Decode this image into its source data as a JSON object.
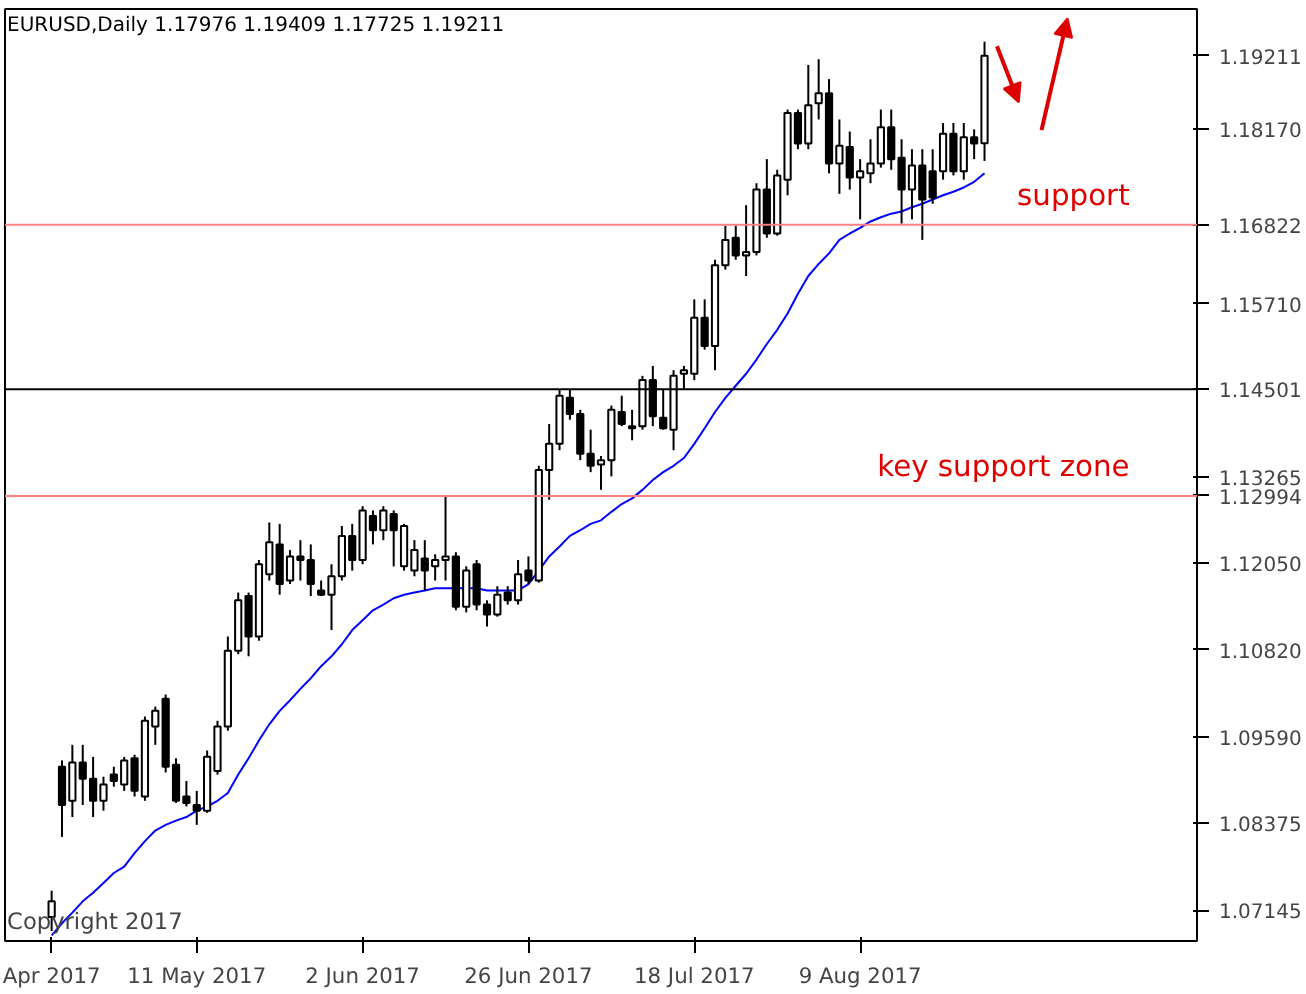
{
  "chart_data": {
    "type": "candlestick",
    "title": "EURUSD,Daily  1.17976 1.19409 1.17725 1.19211",
    "annotations": [
      "Copyright 2017"
    ],
    "categories": [
      "Apr 2017",
      null,
      null,
      null,
      null,
      null,
      null,
      null,
      null,
      null,
      null,
      null,
      null,
      null,
      "11 May 2017",
      null,
      null,
      null,
      null,
      null,
      null,
      null,
      null,
      null,
      null,
      null,
      null,
      null,
      null,
      null,
      "2 Jun 2017",
      null,
      null,
      null,
      null,
      null,
      null,
      null,
      null,
      null,
      null,
      null,
      null,
      null,
      null,
      null,
      "26 Jun 2017",
      null,
      null,
      null,
      null,
      null,
      null,
      null,
      null,
      null,
      null,
      null,
      null,
      null,
      null,
      null,
      "18 Jul 2017",
      null,
      null,
      null,
      null,
      null,
      null,
      null,
      null,
      null,
      null,
      null,
      null,
      null,
      null,
      null,
      "9 Aug 2017",
      null,
      null,
      null,
      null,
      null,
      null,
      null,
      null,
      null,
      null,
      null,
      null
    ],
    "ohlc": [
      [
        1.0705,
        1.0742,
        1.0685,
        1.0727
      ],
      [
        1.0917,
        1.0926,
        1.0818,
        1.0863
      ],
      [
        1.0869,
        1.0948,
        1.0846,
        1.0923
      ],
      [
        1.0923,
        1.0948,
        1.0863,
        1.09
      ],
      [
        1.09,
        1.0931,
        1.0846,
        1.0869
      ],
      [
        1.0869,
        1.0903,
        1.0855,
        1.0892
      ],
      [
        1.0906,
        1.0917,
        1.0889,
        1.0897
      ],
      [
        1.0892,
        1.0931,
        1.0883,
        1.0926
      ],
      [
        1.0929,
        1.0934,
        1.0875,
        1.0883
      ],
      [
        1.0875,
        1.0988,
        1.0869,
        1.0982
      ],
      [
        1.0974,
        1.1002,
        1.0948,
        1.0996
      ],
      [
        1.1013,
        1.1019,
        1.0909,
        1.0917
      ],
      [
        1.092,
        1.0929,
        1.0866,
        1.0869
      ],
      [
        1.0875,
        1.0897,
        1.0861,
        1.0866
      ],
      [
        1.0863,
        1.0883,
        1.0835,
        1.0855
      ],
      [
        1.0855,
        1.094,
        1.0852,
        1.0931
      ],
      [
        1.0911,
        1.0982,
        1.0906,
        1.0974
      ],
      [
        1.0974,
        1.1101,
        1.0968,
        1.1081
      ],
      [
        1.1081,
        1.1163,
        1.1076,
        1.1152
      ],
      [
        1.1158,
        1.1163,
        1.1073,
        1.1101
      ],
      [
        1.1101,
        1.1209,
        1.1095,
        1.1203
      ],
      [
        1.1189,
        1.1262,
        1.118,
        1.1234
      ],
      [
        1.1231,
        1.126,
        1.116,
        1.1175
      ],
      [
        1.118,
        1.1223,
        1.1175,
        1.1214
      ],
      [
        1.1214,
        1.1237,
        1.118,
        1.1209
      ],
      [
        1.1209,
        1.1231,
        1.1158,
        1.1175
      ],
      [
        1.1166,
        1.118,
        1.1158,
        1.116
      ],
      [
        1.116,
        1.1203,
        1.111,
        1.1186
      ],
      [
        1.1186,
        1.1257,
        1.118,
        1.1243
      ],
      [
        1.1243,
        1.126,
        1.1194,
        1.1209
      ],
      [
        1.1209,
        1.1285,
        1.1203,
        1.1279
      ],
      [
        1.1271,
        1.1279,
        1.1231,
        1.1251
      ],
      [
        1.1251,
        1.1285,
        1.1237,
        1.1279
      ],
      [
        1.1274,
        1.1279,
        1.12,
        1.1251
      ],
      [
        1.12,
        1.126,
        1.1194,
        1.1257
      ],
      [
        1.1194,
        1.1237,
        1.1186,
        1.1223
      ],
      [
        1.1211,
        1.1237,
        1.1166,
        1.1194
      ],
      [
        1.12,
        1.1217,
        1.118,
        1.1209
      ],
      [
        1.1209,
        1.1299,
        1.118,
        1.1214
      ],
      [
        1.1214,
        1.122,
        1.1138,
        1.1143
      ],
      [
        1.1143,
        1.12,
        1.1135,
        1.1194
      ],
      [
        1.1203,
        1.1209,
        1.1138,
        1.1146
      ],
      [
        1.1146,
        1.1152,
        1.1115,
        1.1132
      ],
      [
        1.1132,
        1.1172,
        1.1129,
        1.116
      ],
      [
        1.1163,
        1.1172,
        1.1146,
        1.1152
      ],
      [
        1.1152,
        1.1209,
        1.1146,
        1.1189
      ],
      [
        1.1194,
        1.1214,
        1.1175,
        1.118
      ],
      [
        1.118,
        1.1342,
        1.1177,
        1.1336
      ],
      [
        1.1336,
        1.1401,
        1.1294,
        1.1373
      ],
      [
        1.1373,
        1.1449,
        1.1364,
        1.1441
      ],
      [
        1.1438,
        1.1449,
        1.1407,
        1.1415
      ],
      [
        1.1415,
        1.1421,
        1.135,
        1.1359
      ],
      [
        1.1359,
        1.1393,
        1.1333,
        1.1342
      ],
      [
        1.1344,
        1.1356,
        1.1308,
        1.135
      ],
      [
        1.135,
        1.1427,
        1.1327,
        1.1421
      ],
      [
        1.1418,
        1.1441,
        1.1398,
        1.1401
      ],
      [
        1.1395,
        1.1421,
        1.1378,
        1.1398
      ],
      [
        1.1398,
        1.1469,
        1.1393,
        1.1463
      ],
      [
        1.1463,
        1.1483,
        1.1398,
        1.1412
      ],
      [
        1.141,
        1.1449,
        1.1393,
        1.1395
      ],
      [
        1.1393,
        1.1477,
        1.1364,
        1.1469
      ],
      [
        1.1472,
        1.1483,
        1.1449,
        1.1477
      ],
      [
        1.1472,
        1.1577,
        1.1463,
        1.1551
      ],
      [
        1.1551,
        1.1577,
        1.1506,
        1.1511
      ],
      [
        1.1511,
        1.1633,
        1.1477,
        1.1625
      ],
      [
        1.1625,
        1.1681,
        1.1619,
        1.1661
      ],
      [
        1.1664,
        1.1681,
        1.1633,
        1.1639
      ],
      [
        1.1639,
        1.171,
        1.161,
        1.1644
      ],
      [
        1.1644,
        1.1741,
        1.1639,
        1.1732
      ],
      [
        1.1732,
        1.1775,
        1.1664,
        1.167
      ],
      [
        1.167,
        1.176,
        1.1667,
        1.1752
      ],
      [
        1.1746,
        1.1845,
        1.1724,
        1.184
      ],
      [
        1.184,
        1.1845,
        1.1789,
        1.1797
      ],
      [
        1.1797,
        1.1908,
        1.1789,
        1.1851
      ],
      [
        1.1854,
        1.1916,
        1.1831,
        1.1868
      ],
      [
        1.1868,
        1.1888,
        1.1755,
        1.1769
      ],
      [
        1.1769,
        1.1831,
        1.1726,
        1.1794
      ],
      [
        1.1792,
        1.1814,
        1.1732,
        1.1749
      ],
      [
        1.1749,
        1.1775,
        1.169,
        1.1758
      ],
      [
        1.1755,
        1.1803,
        1.1741,
        1.1769
      ],
      [
        1.1769,
        1.1845,
        1.1763,
        1.182
      ],
      [
        1.182,
        1.1845,
        1.176,
        1.1775
      ],
      [
        1.1777,
        1.1803,
        1.1684,
        1.1732
      ],
      [
        1.1732,
        1.1789,
        1.169,
        1.1766
      ],
      [
        1.1766,
        1.1789,
        1.1661,
        1.1718
      ],
      [
        1.1758,
        1.1789,
        1.1712,
        1.1721
      ],
      [
        1.1758,
        1.1826,
        1.1746,
        1.1811
      ],
      [
        1.1811,
        1.1826,
        1.1752,
        1.1758
      ],
      [
        1.1758,
        1.1826,
        1.1746,
        1.1806
      ],
      [
        1.1806,
        1.1817,
        1.1775,
        1.1797
      ],
      [
        1.17976,
        1.19409,
        1.17725,
        1.19211
      ]
    ],
    "series": [
      {
        "type": "line",
        "color": "#0000ff",
        "values": [
          1.0679,
          1.0696,
          1.0711,
          1.0727,
          1.0739,
          1.0753,
          1.0767,
          1.0776,
          1.0795,
          1.0812,
          1.0827,
          1.0835,
          1.0841,
          1.0846,
          1.0855,
          1.0861,
          1.0869,
          1.088,
          1.0906,
          1.0929,
          1.0954,
          1.0977,
          1.0996,
          1.1011,
          1.1027,
          1.1042,
          1.1059,
          1.1073,
          1.109,
          1.111,
          1.1124,
          1.1138,
          1.1146,
          1.1155,
          1.116,
          1.1163,
          1.1166,
          1.1169,
          1.1169,
          1.1169,
          1.1169,
          1.1169,
          1.1166,
          1.1166,
          1.1166,
          1.1166,
          1.1175,
          1.1194,
          1.1214,
          1.1228,
          1.1243,
          1.1251,
          1.126,
          1.1265,
          1.1277,
          1.1288,
          1.1296,
          1.1308,
          1.1322,
          1.1333,
          1.1342,
          1.1353,
          1.1373,
          1.1395,
          1.1418,
          1.1438,
          1.1455,
          1.1472,
          1.1492,
          1.1514,
          1.1534,
          1.1557,
          1.1585,
          1.161,
          1.1627,
          1.1642,
          1.1661,
          1.167,
          1.1678,
          1.1687,
          1.1693,
          1.1698,
          1.1701,
          1.1707,
          1.1712,
          1.1718,
          1.1724,
          1.1729,
          1.1735,
          1.1743,
          1.1755
        ]
      }
    ],
    "ylim": [
      1.0671,
      1.1987
    ],
    "yticks": [
      1.07145,
      1.08375,
      {
        "value": 1.0959,
        "label": "1.09590"
      },
      {
        "value": 1.1082,
        "label": "1.10820"
      },
      {
        "value": 1.1205,
        "label": "1.12050"
      },
      1.12994,
      1.13265,
      1.14501,
      {
        "value": 1.1571,
        "label": "1.15710"
      },
      1.16822,
      {
        "value": 1.1817,
        "label": "1.18170"
      },
      1.19211
    ],
    "ref_lines": [
      {
        "axis": "y",
        "value": 1.16822,
        "label": "support",
        "color": "#ff8080"
      },
      {
        "axis": "y",
        "value": 1.14501,
        "color": "#000000"
      },
      {
        "axis": "y",
        "value": 1.12994,
        "label": "key support zone",
        "color": "#ff8080"
      }
    ]
  }
}
